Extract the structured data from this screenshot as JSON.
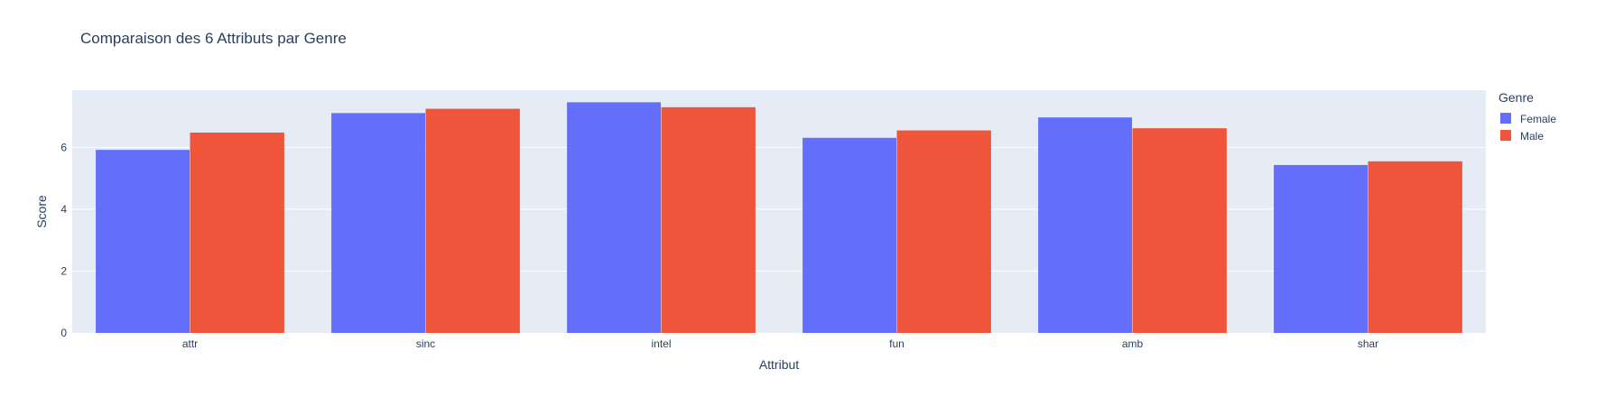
{
  "chart_data": {
    "type": "bar",
    "title": "Comparaison des 6 Attributs par Genre",
    "xlabel": "Attribut",
    "ylabel": "Score",
    "categories": [
      "attr",
      "sinc",
      "intel",
      "fun",
      "amb",
      "shar"
    ],
    "series": [
      {
        "name": "Female",
        "values": [
          5.92,
          7.11,
          7.46,
          6.31,
          6.97,
          5.43
        ],
        "color": "#636efa"
      },
      {
        "name": "Male",
        "values": [
          6.48,
          7.25,
          7.3,
          6.55,
          6.62,
          5.55
        ],
        "color": "#ef553b"
      }
    ],
    "ylim": [
      0,
      7.85
    ],
    "yticks": [
      0,
      2,
      4,
      6
    ],
    "grid": true,
    "legend": {
      "title": "Genre",
      "position": "top-right"
    },
    "plot_background": "#e5ecf6"
  }
}
